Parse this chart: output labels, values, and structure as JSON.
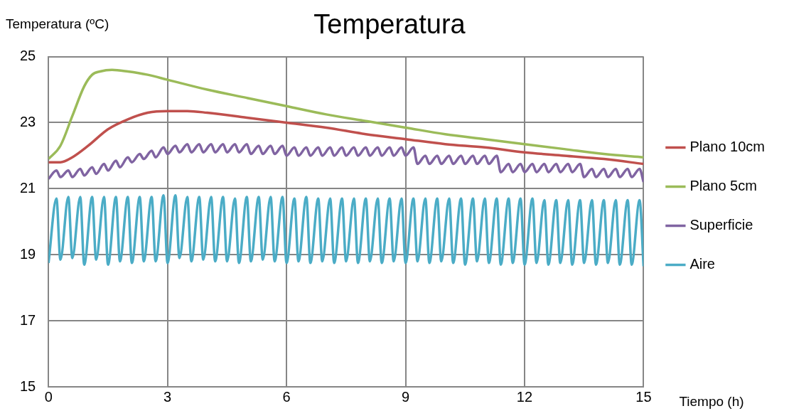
{
  "chart_data": {
    "type": "line",
    "title": "Temperatura",
    "xlabel": "Tiempo (h)",
    "ylabel": "Temperatura (ºC)",
    "xlim": [
      0,
      15
    ],
    "xticks": [
      0,
      3,
      6,
      9,
      12,
      15
    ],
    "ylim": [
      15,
      25
    ],
    "yticks": [
      15,
      17,
      19,
      21,
      23,
      25
    ],
    "grid": true,
    "legend": "right",
    "marker": "none",
    "line_style": "solid",
    "x": [
      0,
      0.2,
      0.3,
      0.5,
      0.6,
      0.8,
      0.9,
      1.1,
      1.2,
      1.4,
      1.5,
      1.7,
      1.8,
      2,
      2.1,
      2.3,
      2.4,
      2.6,
      2.7,
      2.9,
      3,
      3.2,
      3.3,
      3.5,
      3.6,
      3.8,
      3.9,
      4.1,
      4.2,
      4.4,
      4.5,
      4.7,
      4.8,
      5,
      5.1,
      5.3,
      5.4,
      5.6,
      5.7,
      5.9,
      6,
      6.2,
      6.3,
      6.5,
      6.6,
      6.8,
      6.9,
      7.1,
      7.2,
      7.4,
      7.5,
      7.7,
      7.8,
      8,
      8.1,
      8.3,
      8.4,
      8.6,
      8.7,
      8.9,
      9,
      9.2,
      9.3,
      9.5,
      9.6,
      9.8,
      9.9,
      10.1,
      10.2,
      10.4,
      10.5,
      10.7,
      10.8,
      11,
      11.1,
      11.3,
      11.4,
      11.6,
      11.7,
      11.9,
      12,
      12.2,
      12.3,
      12.5,
      12.6,
      12.8,
      12.9,
      13.1,
      13.2,
      13.4,
      13.5,
      13.7,
      13.8,
      14,
      14.1,
      14.3,
      14.4,
      14.6,
      14.7,
      14.9,
      15
    ],
    "series": [
      {
        "name": "Plano 10cm",
        "color": "#c0504d",
        "x": [
          0,
          0.3,
          0.6,
          1,
          1.5,
          2,
          2.5,
          3,
          3.5,
          4,
          5,
          6,
          7,
          8,
          9,
          10,
          11,
          12,
          13,
          14,
          15
        ],
        "values": [
          21.8,
          21.8,
          21.95,
          22.3,
          22.8,
          23.1,
          23.3,
          23.35,
          23.35,
          23.3,
          23.15,
          23.0,
          22.85,
          22.65,
          22.5,
          22.35,
          22.25,
          22.1,
          22.0,
          21.9,
          21.75
        ]
      },
      {
        "name": "Plano 5cm",
        "color": "#9bbb59",
        "x": [
          0,
          0.3,
          0.6,
          0.9,
          1.1,
          1.3,
          1.6,
          2,
          2.5,
          3,
          4,
          5,
          6,
          7,
          8,
          9,
          10,
          11,
          12,
          13,
          14,
          15
        ],
        "values": [
          21.9,
          22.3,
          23.2,
          24.1,
          24.45,
          24.55,
          24.6,
          24.55,
          24.45,
          24.3,
          24.0,
          23.75,
          23.5,
          23.25,
          23.05,
          22.85,
          22.65,
          22.5,
          22.35,
          22.2,
          22.05,
          21.95
        ]
      },
      {
        "name": "Superficie",
        "color": "#8064a2",
        "values": [
          21.3,
          21.55,
          21.35,
          21.55,
          21.35,
          21.6,
          21.4,
          21.65,
          21.45,
          21.75,
          21.55,
          21.85,
          21.65,
          21.95,
          21.8,
          22.05,
          21.9,
          22.15,
          21.95,
          22.25,
          22.05,
          22.3,
          22.1,
          22.35,
          22.1,
          22.35,
          22.1,
          22.35,
          22.1,
          22.35,
          22.1,
          22.35,
          22.1,
          22.35,
          22.05,
          22.3,
          22.05,
          22.3,
          22.05,
          22.3,
          22.0,
          22.25,
          22.0,
          22.25,
          22.0,
          22.25,
          22.0,
          22.25,
          22.0,
          22.25,
          22.0,
          22.25,
          22.0,
          22.25,
          22.0,
          22.25,
          22.0,
          22.25,
          22.0,
          22.25,
          22.0,
          22.25,
          21.75,
          22.0,
          21.75,
          22.0,
          21.75,
          22.0,
          21.75,
          22.0,
          21.75,
          22.0,
          21.75,
          22.0,
          21.75,
          22.0,
          21.5,
          21.75,
          21.5,
          21.75,
          21.5,
          21.75,
          21.5,
          21.75,
          21.5,
          21.75,
          21.5,
          21.75,
          21.5,
          21.75,
          21.35,
          21.6,
          21.35,
          21.6,
          21.35,
          21.6,
          21.35,
          21.6,
          21.35,
          21.6,
          21.2
        ]
      },
      {
        "name": "Aire",
        "color": "#4bacc6",
        "values": [
          18.75,
          20.7,
          18.85,
          20.75,
          18.9,
          20.75,
          18.7,
          20.75,
          18.85,
          20.75,
          18.7,
          20.75,
          18.8,
          20.75,
          18.75,
          20.75,
          18.8,
          20.75,
          18.8,
          20.8,
          18.75,
          20.8,
          18.9,
          20.75,
          18.8,
          20.75,
          18.85,
          20.75,
          18.8,
          20.75,
          18.8,
          20.7,
          18.75,
          20.75,
          18.8,
          20.75,
          18.85,
          20.75,
          18.8,
          20.75,
          18.75,
          20.7,
          18.8,
          20.75,
          18.75,
          20.7,
          18.8,
          20.7,
          18.75,
          20.7,
          18.8,
          20.7,
          18.75,
          20.7,
          18.8,
          20.7,
          18.75,
          20.7,
          18.8,
          20.7,
          18.75,
          20.7,
          18.8,
          20.7,
          18.75,
          20.7,
          18.8,
          20.7,
          18.75,
          20.7,
          18.7,
          20.7,
          18.8,
          20.7,
          18.75,
          20.7,
          18.7,
          20.7,
          18.75,
          20.7,
          18.7,
          20.7,
          18.75,
          20.65,
          18.7,
          20.65,
          18.75,
          20.65,
          18.7,
          20.65,
          18.75,
          20.65,
          18.7,
          20.65,
          18.75,
          20.65,
          18.7,
          20.65,
          18.7,
          20.65,
          18.65
        ]
      }
    ]
  }
}
